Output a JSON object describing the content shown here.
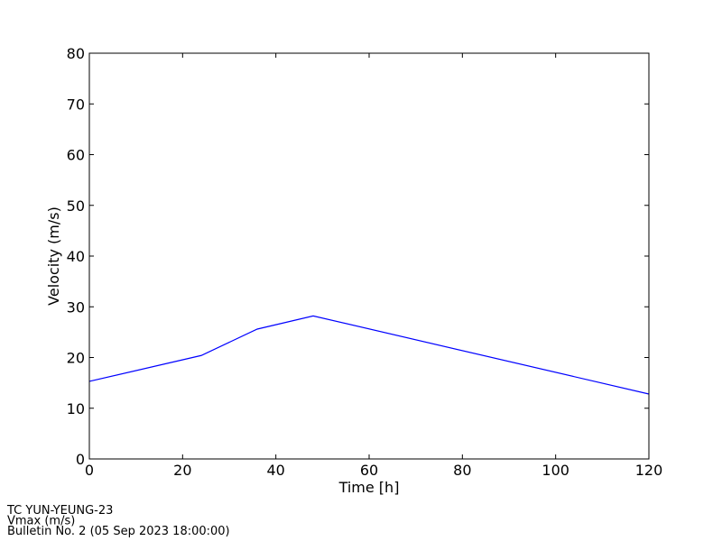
{
  "chart_data": {
    "type": "line",
    "x_label": "Time [h]",
    "y_label": "Velocity (m/s)",
    "x": [
      0,
      24,
      36,
      48,
      120
    ],
    "series": [
      {
        "color": "#0000ff",
        "values": [
          15.3,
          20.4,
          25.6,
          28.2,
          12.8
        ]
      }
    ],
    "xlim": [
      0,
      120
    ],
    "xticks": [
      0,
      20,
      40,
      60,
      80,
      100,
      120
    ],
    "ylim": [
      0,
      80
    ],
    "yticks": [
      0,
      10,
      20,
      30,
      40,
      50,
      60,
      70,
      80
    ],
    "grid": false,
    "footnotes": [
      "TC YUN-YEUNG-23",
      "Vmax (m/s)",
      "Bulletin No. 2 (05 Sep 2023  18:00:00)"
    ]
  }
}
